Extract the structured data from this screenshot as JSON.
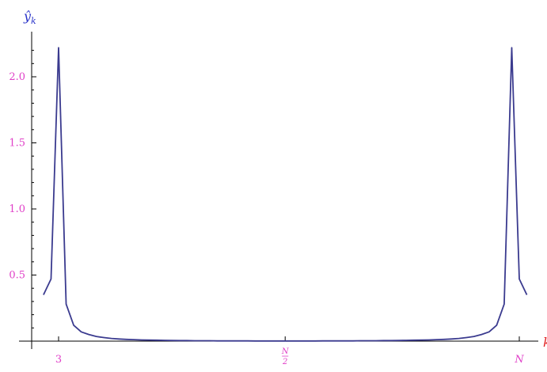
{
  "chart_data": {
    "type": "line",
    "ylabel": "ŷ",
    "ylabel_subscript": "k",
    "xlabel": "k",
    "x_ticks": [
      {
        "x": 3,
        "label": "3"
      },
      {
        "x": 33,
        "label": "N/2",
        "numerator": "N",
        "denominator": "2"
      },
      {
        "x": 64,
        "label": "N"
      }
    ],
    "y_ticks": [
      0.5,
      1.0,
      1.5,
      2.0
    ],
    "y_tick_labels": [
      "0.5",
      "1.0",
      "1.5",
      "2.0"
    ],
    "xlim": [
      -0.5,
      67
    ],
    "ylim": [
      0,
      2.3
    ],
    "grid": false,
    "series": [
      {
        "color": "#3b3b8f",
        "x": [
          1,
          2,
          3,
          4,
          5,
          6,
          7,
          8,
          9,
          10,
          11,
          12,
          13,
          14,
          15,
          16,
          17,
          18,
          19,
          20,
          21,
          22,
          23,
          24,
          25,
          26,
          27,
          28,
          29,
          30,
          31,
          32,
          33,
          34,
          35,
          36,
          37,
          38,
          39,
          40,
          41,
          42,
          43,
          44,
          45,
          46,
          47,
          48,
          49,
          50,
          51,
          52,
          53,
          54,
          55,
          56,
          57,
          58,
          59,
          60,
          61,
          62,
          63,
          64,
          65
        ],
        "y": [
          0.35,
          0.47,
          2.22,
          0.28,
          0.12,
          0.07,
          0.05,
          0.035,
          0.027,
          0.02,
          0.016,
          0.013,
          0.011,
          0.009,
          0.008,
          0.007,
          0.006,
          0.005,
          0.004,
          0.004,
          0.003,
          0.003,
          0.003,
          0.002,
          0.002,
          0.002,
          0.002,
          0.002,
          0.001,
          0.001,
          0.001,
          0.001,
          0.001,
          0.001,
          0.001,
          0.001,
          0.001,
          0.002,
          0.002,
          0.002,
          0.002,
          0.002,
          0.003,
          0.003,
          0.003,
          0.004,
          0.004,
          0.005,
          0.006,
          0.007,
          0.008,
          0.009,
          0.011,
          0.013,
          0.016,
          0.02,
          0.027,
          0.035,
          0.05,
          0.07,
          0.12,
          0.28,
          2.22,
          0.47,
          0.35
        ]
      }
    ]
  }
}
